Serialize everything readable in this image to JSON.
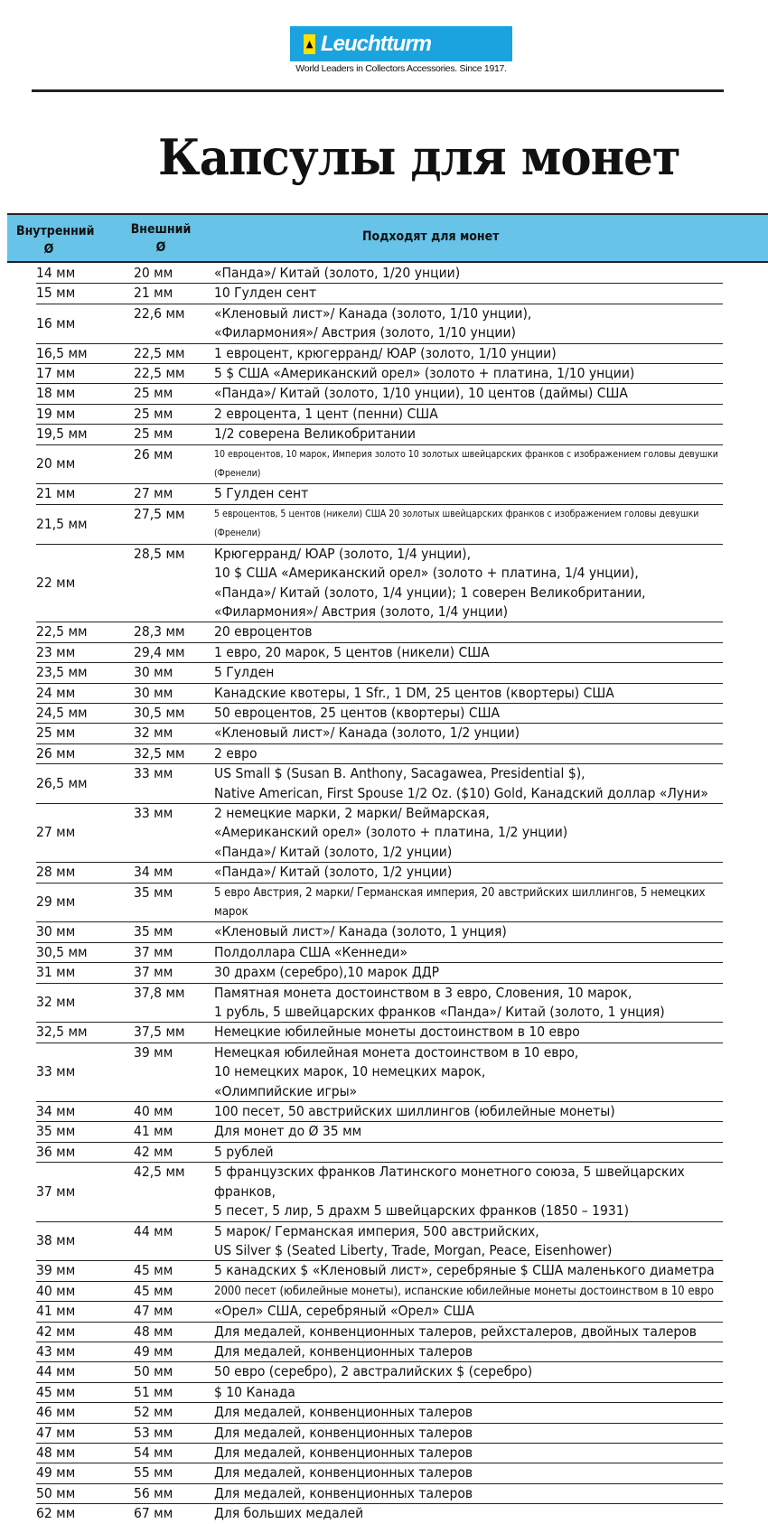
{
  "brand": {
    "name": "Leuchtturm",
    "tagline": "World Leaders in Collectors Accessories. Since 1917."
  },
  "title": "Капсулы для монет",
  "table": {
    "headers": [
      "Внутренний\nØ",
      "Внешний\nØ",
      "Подходят для монет"
    ],
    "rows": [
      {
        "inner": "14 мм",
        "outer": "20 мм",
        "coins": "«Панда»/ Китай (золото, 1/20 унции)"
      },
      {
        "inner": "15 мм",
        "outer": "21 мм",
        "coins": "10 Гулден сент"
      },
      {
        "inner": "16 мм",
        "outer": "22,6 мм",
        "coins": "«Кленовый лист»/ Канада (золото, 1/10 унции),\n«Филармония»/ Австрия (золото, 1/10 унции)"
      },
      {
        "inner": "16,5 мм",
        "outer": "22,5 мм",
        "coins": "1 евроцент, крюгерранд/ ЮАР (золото, 1/10 унции)"
      },
      {
        "inner": "17 мм",
        "outer": "22,5 мм",
        "coins": "5 $ США «Американский орел» (золото + платина, 1/10 унции)"
      },
      {
        "inner": "18 мм",
        "outer": "25 мм",
        "coins": "«Панда»/ Китай (золото, 1/10 унции), 10 центов (даймы) США"
      },
      {
        "inner": "19 мм",
        "outer": "25 мм",
        "coins": "2 евроцента, 1 цент (пенни) США"
      },
      {
        "inner": "19,5 мм",
        "outer": "25 мм",
        "coins": "1/2 соверена Великобритании"
      },
      {
        "inner": "20 мм",
        "outer": "26 мм",
        "coins": "10 евроцентов, 10 марок, Империя золото 10 золотых швейцарских франков с изображением головы девушки (Френели)",
        "small": true
      },
      {
        "inner": "21 мм",
        "outer": "27 мм",
        "coins": "5 Гулден сент"
      },
      {
        "inner": "21,5 мм",
        "outer": "27,5 мм",
        "coins": "5 евроцентов, 5 центов (никели) США 20 золотых швейцарских франков с изображением головы девушки (Френели)",
        "small": true
      },
      {
        "inner": "22 мм",
        "outer": "28,5 мм",
        "coins": "Крюгерранд/ ЮАР (золото, 1/4 унции),\n10 $ США «Американский орел» (золото + платина, 1/4 унции),\n«Панда»/ Китай (золото, 1/4 унции); 1 соверен Великобритании,\n«Филармония»/ Австрия (золото, 1/4 унции)"
      },
      {
        "inner": "22,5 мм",
        "outer": "28,3 мм",
        "coins": "20 евроцентов"
      },
      {
        "inner": "23 мм",
        "outer": "29,4 мм",
        "coins": "1 евро, 20 марок, 5 центов (никели) США"
      },
      {
        "inner": "23,5 мм",
        "outer": "30 мм",
        "coins": "5 Гулден"
      },
      {
        "inner": "24 мм",
        "outer": "30 мм",
        "coins": "Канадские квотеры, 1 Sfr., 1 DM, 25 центов (квортеры) США"
      },
      {
        "inner": "24,5 мм",
        "outer": "30,5 мм",
        "coins": "50 евроцентов, 25 центов (квортеры) США"
      },
      {
        "inner": "25 мм",
        "outer": "32 мм",
        "coins": "«Кленовый лист»/ Канада (золото, 1/2 унции)"
      },
      {
        "inner": "26 мм",
        "outer": "32,5 мм",
        "coins": "2 евро"
      },
      {
        "inner": "26,5 мм",
        "outer": "33 мм",
        "coins": "US Small $ (Susan B. Anthony, Sacagawea, Presidential $),\nNative American, First Spouse 1/2 Oz. ($10) Gold, Канадский доллар «Луни»"
      },
      {
        "inner": "27 мм",
        "outer": "33 мм",
        "coins": "2 немецкие марки, 2 марки/ Веймарская,\n«Американский орел» (золото + платина, 1/2 унции)\n«Панда»/ Китай (золото, 1/2 унции)"
      },
      {
        "inner": "28 мм",
        "outer": "34 мм",
        "coins": "«Панда»/ Китай (золото, 1/2 унции)"
      },
      {
        "inner": "29 мм",
        "outer": "35 мм",
        "coins": "5 евро Австрия, 2 марки/ Германская империя, 20 австрийских шиллингов, 5 немецких марок",
        "mid": true
      },
      {
        "inner": "30 мм",
        "outer": "35 мм",
        "coins": "«Кленовый лист»/ Канада (золото, 1 унция)"
      },
      {
        "inner": "30,5 мм",
        "outer": "37 мм",
        "coins": "Полдоллара США «Кеннеди»"
      },
      {
        "inner": "31 мм",
        "outer": "37 мм",
        "coins": "30 драхм (серебро),10 марок ДДР"
      },
      {
        "inner": "32 мм",
        "outer": "37,8 мм",
        "coins": "Памятная монета достоинством в 3 евро, Словения, 10 марок,\n1 рубль, 5 швейцарских франков «Панда»/ Китай (золото, 1 унция)"
      },
      {
        "inner": "32,5 мм",
        "outer": "37,5 мм",
        "coins": "Немецкие юбилейные монеты достоинством в 10 евро"
      },
      {
        "inner": "33 мм",
        "outer": "39 мм",
        "coins": "Немецкая юбилейная монета достоинством в 10 евро,\n10 немецких марок, 10 немецких марок,\n«Олимпийские игры»"
      },
      {
        "inner": "34 мм",
        "outer": "40 мм",
        "coins": "100 песет, 50 австрийских шиллингов (юбилейные монеты)"
      },
      {
        "inner": "35 мм",
        "outer": "41 мм",
        "coins": "Для монет до Ø 35 мм"
      },
      {
        "inner": "36 мм",
        "outer": "42 мм",
        "coins": "5 рублей"
      },
      {
        "inner": "37 мм",
        "outer": "42,5 мм",
        "coins": "5 французских франков Латинского монетного союза, 5 швейцарских франков,\n5 песет, 5 лир, 5 драхм 5 швейцарских франков (1850 – 1931)"
      },
      {
        "inner": "38 мм",
        "outer": "44 мм",
        "coins": "5 марок/ Германская империя, 500 австрийских,\nUS Silver $ (Seated Liberty, Trade, Morgan, Peace, Eisenhower)"
      },
      {
        "inner": "39 мм",
        "outer": "45 мм",
        "coins": "5 канадских $ «Кленовый лист», серебряные $ США маленького диаметра"
      },
      {
        "inner": "40 мм",
        "outer": "45 мм",
        "coins": "2000 песет (юбилейные монеты), испанские юбилейные монеты достоинством в 10 евро",
        "mid": true
      },
      {
        "inner": "41 мм",
        "outer": "47 мм",
        "coins": "«Орел» США, серебряный «Орел» США"
      },
      {
        "inner": "42 мм",
        "outer": "48 мм",
        "coins": "Для медалей, конвенционных талеров, рейхсталеров, двойных талеров"
      },
      {
        "inner": "43 мм",
        "outer": "49 мм",
        "coins": "Для медалей, конвенционных талеров"
      },
      {
        "inner": "44 мм",
        "outer": "50 мм",
        "coins": "50 евро (серебро), 2 австралийских $ (серебро)"
      },
      {
        "inner": "45 мм",
        "outer": "51 мм",
        "coins": "$ 10 Канада"
      },
      {
        "inner": "46 мм",
        "outer": "52 мм",
        "coins": "Для медалей, конвенционных талеров"
      },
      {
        "inner": "47 мм",
        "outer": "53 мм",
        "coins": "Для медалей, конвенционных талеров"
      },
      {
        "inner": "48 мм",
        "outer": "54 мм",
        "coins": "Для медалей, конвенционных талеров"
      },
      {
        "inner": "49 мм",
        "outer": "55 мм",
        "coins": "Для медалей, конвенционных талеров"
      },
      {
        "inner": "50 мм",
        "outer": "56 мм",
        "coins": "Для медалей, конвенционных талеров"
      },
      {
        "inner": "62 мм",
        "outer": "67 мм",
        "coins": "Для больших медалей"
      }
    ]
  }
}
